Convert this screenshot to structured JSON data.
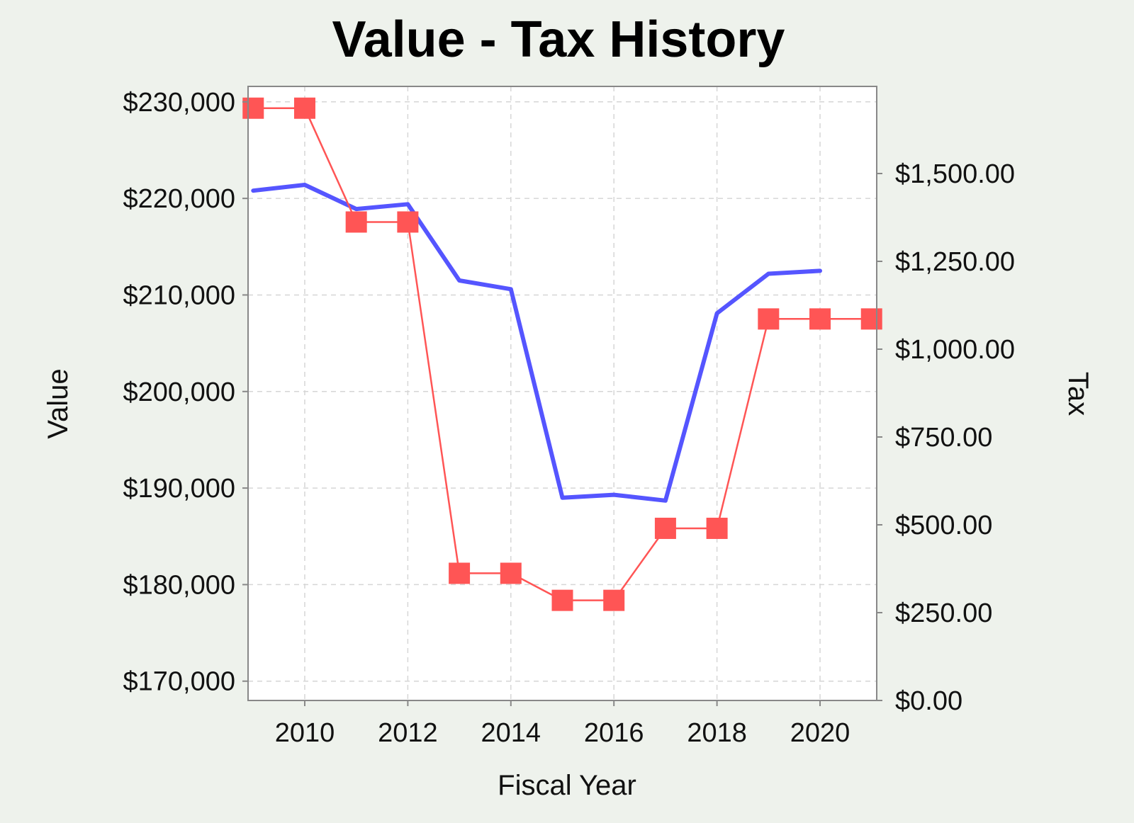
{
  "chart_data": {
    "type": "line",
    "title": "Value - Tax History",
    "xlabel": "Fiscal Year",
    "ylabel": "Value",
    "y2label": "Tax",
    "xlim": [
      2008.9,
      2021.1
    ],
    "ylim": [
      168000,
      231600
    ],
    "y2lim": [
      0,
      1748
    ],
    "x_ticks": [
      2010,
      2012,
      2014,
      2016,
      2018,
      2020
    ],
    "x_tick_labels": [
      "2010",
      "2012",
      "2014",
      "2016",
      "2018",
      "2020"
    ],
    "y_ticks": [
      170000,
      180000,
      190000,
      200000,
      210000,
      220000,
      230000
    ],
    "y_tick_labels": [
      "$170,000",
      "$180,000",
      "$190,000",
      "$200,000",
      "$210,000",
      "$220,000",
      "$230,000"
    ],
    "y2_ticks": [
      0,
      250,
      500,
      750,
      1000,
      1250,
      1500
    ],
    "y2_tick_labels": [
      "$0.00",
      "$250.00",
      "$500.00",
      "$750.00",
      "$1,000.00",
      "$1,250.00",
      "$1,500.00"
    ],
    "grid": true,
    "series": [
      {
        "name": "Value",
        "axis": "left",
        "color": "#5555ff",
        "marker": "none",
        "x": [
          2009,
          2010,
          2011,
          2012,
          2013,
          2014,
          2015,
          2016,
          2017,
          2018,
          2019,
          2020
        ],
        "values": [
          220800,
          221400,
          218900,
          219400,
          211500,
          210600,
          189000,
          189300,
          188700,
          208100,
          212200,
          212500
        ]
      },
      {
        "name": "Tax",
        "axis": "right",
        "color": "#ff5555",
        "marker": "square",
        "x": [
          2009,
          2010,
          2011,
          2012,
          2013,
          2014,
          2015,
          2016,
          2017,
          2018,
          2019,
          2020,
          2021
        ],
        "values": [
          1686,
          1686,
          1362,
          1362,
          362,
          362,
          285,
          285,
          490,
          490,
          1086,
          1086,
          1086
        ]
      }
    ]
  }
}
